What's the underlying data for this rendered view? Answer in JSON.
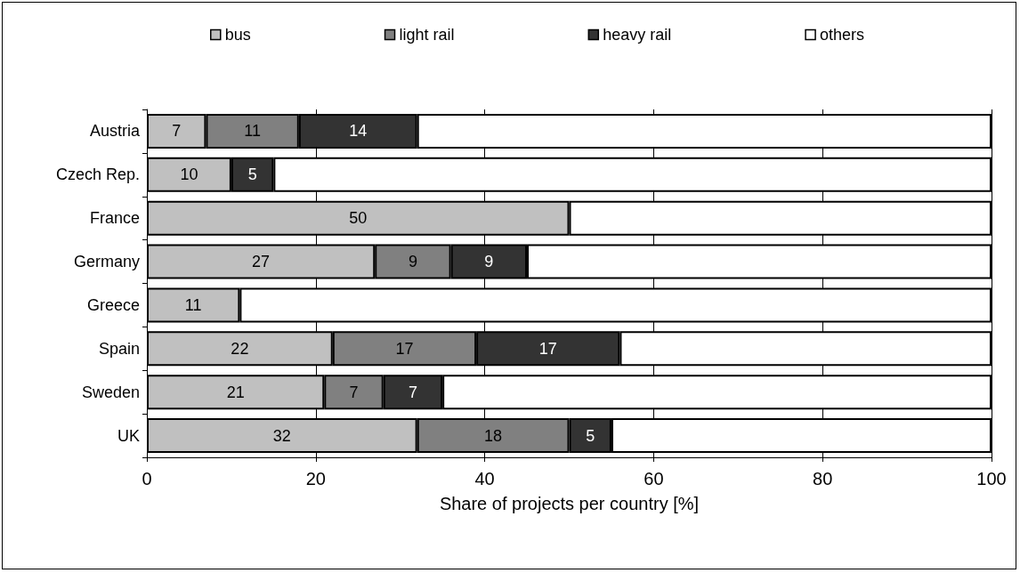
{
  "chart_data": {
    "type": "bar",
    "orientation": "horizontal",
    "stacked": true,
    "xlabel": "Share of projects per country [%]",
    "categories": [
      "Austria",
      "Czech Rep.",
      "France",
      "Germany",
      "Greece",
      "Spain",
      "Sweden",
      "UK"
    ],
    "series": [
      {
        "name": "bus",
        "color": "#c0c0c0",
        "values": [
          7,
          10,
          50,
          27,
          11,
          22,
          21,
          32
        ],
        "value_labels": [
          "7",
          "10",
          "50",
          "27",
          "11",
          "22",
          "21",
          "32"
        ]
      },
      {
        "name": "light rail",
        "color": "#808080",
        "values": [
          11,
          null,
          null,
          9,
          null,
          17,
          7,
          18
        ],
        "value_labels": [
          "11",
          null,
          null,
          "9",
          null,
          "17",
          "7",
          "18"
        ]
      },
      {
        "name": "heavy rail",
        "color": "#333333",
        "values": [
          14,
          5,
          null,
          9,
          null,
          17,
          7,
          5
        ],
        "value_labels": [
          "14",
          "5",
          null,
          "9",
          null,
          "17",
          "7",
          "5"
        ]
      },
      {
        "name": "others",
        "color": "#ffffff",
        "values": [
          68,
          85,
          50,
          55,
          89,
          44,
          65,
          45
        ]
      }
    ],
    "xlim": [
      0,
      100
    ],
    "xticks": [
      0,
      20,
      40,
      60,
      80,
      100
    ],
    "grid": "x",
    "legend": "top"
  }
}
